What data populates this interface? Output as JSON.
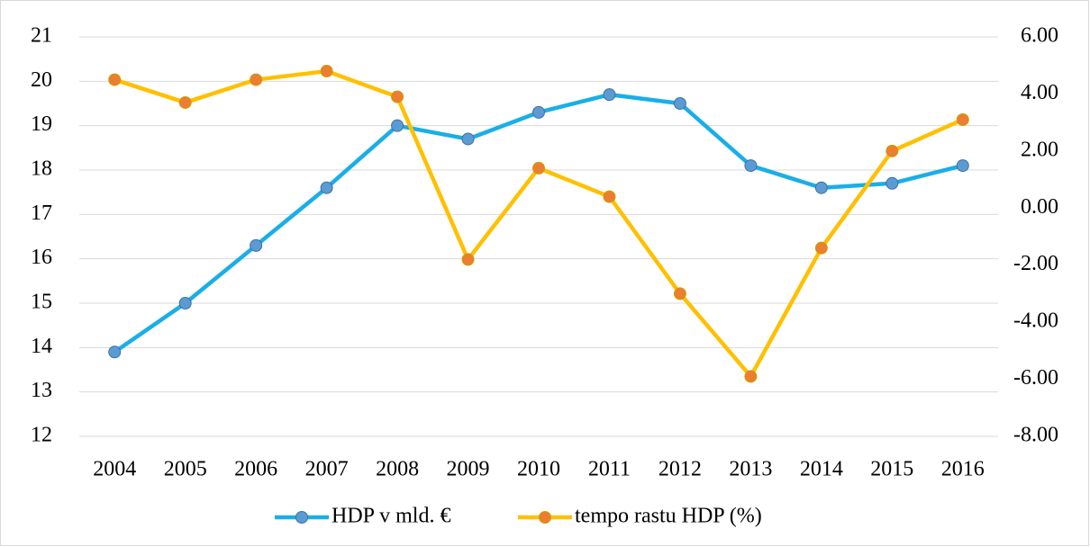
{
  "chart_data": {
    "type": "line",
    "categories": [
      "2004",
      "2005",
      "2006",
      "2007",
      "2008",
      "2009",
      "2010",
      "2011",
      "2012",
      "2013",
      "2014",
      "2015",
      "2016"
    ],
    "series": [
      {
        "name": "HDP v mld. €",
        "color": "#1aaee8",
        "marker_color": "#5b9bd5",
        "values": [
          13.9,
          15.0,
          16.3,
          17.6,
          19.0,
          18.7,
          19.3,
          19.7,
          19.5,
          18.1,
          17.6,
          17.7,
          18.1
        ]
      },
      {
        "name": "tempo rastu HDP (%)",
        "color": "#ffc000",
        "marker_color": "#ed7d31",
        "axis": "y2",
        "values": [
          4.5,
          3.7,
          4.5,
          4.8,
          3.9,
          -1.8,
          1.4,
          0.4,
          -3.0,
          -5.9,
          -1.4,
          2.0,
          3.1
        ]
      }
    ],
    "ylim": [
      12,
      21
    ],
    "yticks": [
      12,
      13,
      14,
      15,
      16,
      17,
      18,
      19,
      20,
      21
    ],
    "y2lim": [
      -8,
      6
    ],
    "y2ticks": [
      {
        "value": -8,
        "label": "-8.00"
      },
      {
        "value": -6,
        "label": "-6.00"
      },
      {
        "value": -4,
        "label": "-4.00"
      },
      {
        "value": -2,
        "label": "-2.00"
      },
      {
        "value": 0,
        "label": "0.00"
      },
      {
        "value": 2,
        "label": "2.00"
      },
      {
        "value": 4,
        "label": "4.00"
      },
      {
        "value": 6,
        "label": "6.00"
      }
    ],
    "grid": true,
    "legend": "bottom"
  }
}
